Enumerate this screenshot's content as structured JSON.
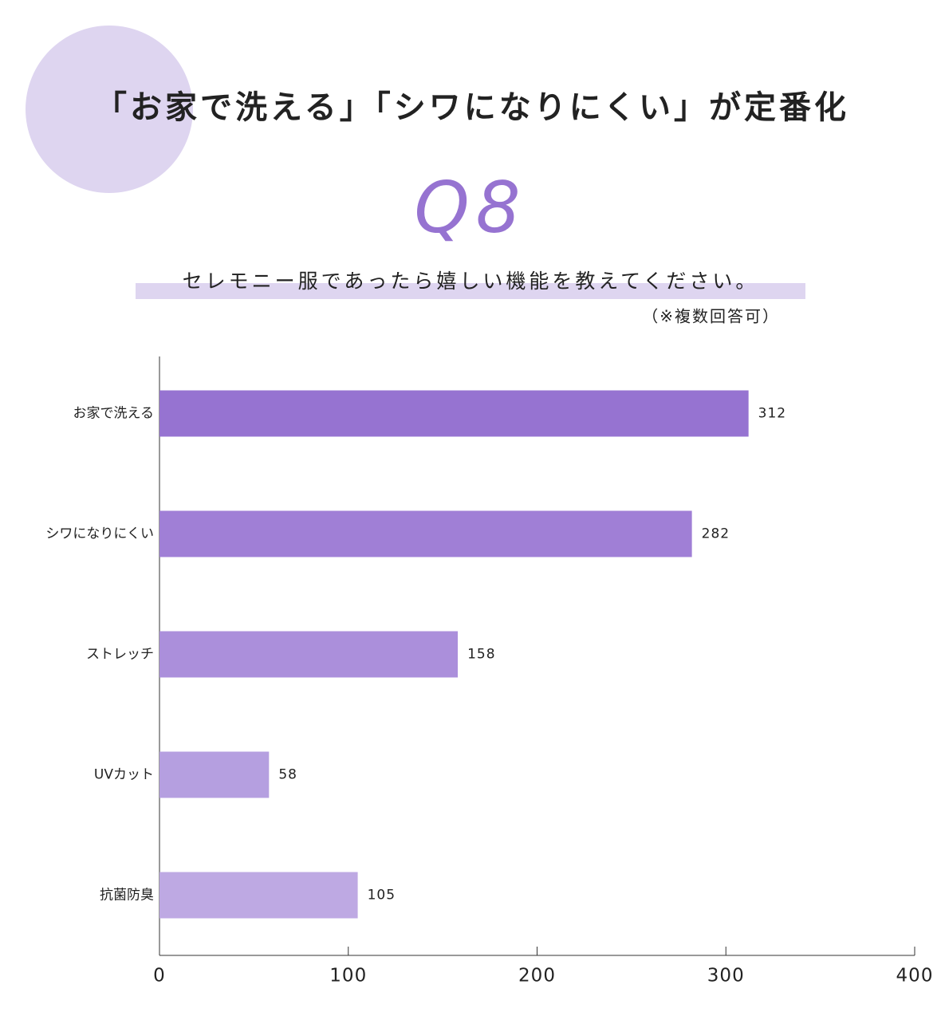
{
  "chart_data": {
    "type": "bar",
    "orientation": "horizontal",
    "title": "「お家で洗える」「シワになりにくい」が定番化",
    "question_number": "Q8",
    "subtitle": "セレモニー服であったら嬉しい機能を教えてください。",
    "note": "（※複数回答可）",
    "categories": [
      "お家で洗える",
      "シワになりにくい",
      "ストレッチ",
      "UVカット",
      "抗菌防臭"
    ],
    "values": [
      312,
      282,
      158,
      58,
      105
    ],
    "colors": [
      "#9673d1",
      "#a07fd6",
      "#ab8fdb",
      "#b59fe0",
      "#bea9e3"
    ],
    "xlim": [
      0,
      400
    ],
    "xticks": [
      0,
      100,
      200,
      300,
      400
    ],
    "grid": false
  }
}
